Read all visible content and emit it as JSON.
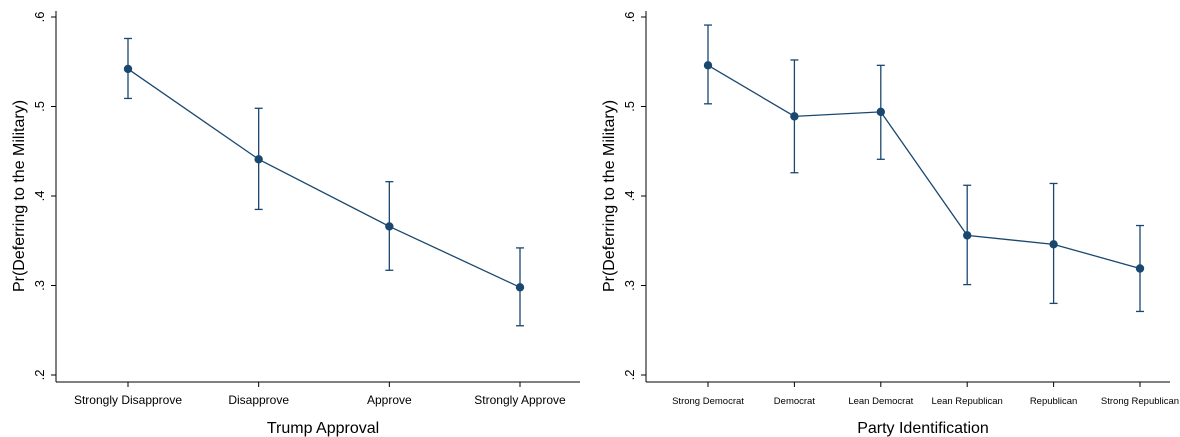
{
  "colors": {
    "series": "#1a476f",
    "axis": "#000000",
    "background": "#ffffff"
  },
  "chart_data": [
    {
      "type": "line",
      "xlabel": "Trump Approval",
      "ylabel": "Pr(Deferring to the Military)",
      "categories": [
        "Strongly Disapprove",
        "Disapprove",
        "Approve",
        "Strongly Approve"
      ],
      "ylim": [
        0.2,
        0.6
      ],
      "yticks": [
        0.2,
        0.3,
        0.4,
        0.5,
        0.6
      ],
      "ytick_labels": [
        ".2",
        ".3",
        ".4",
        ".5",
        ".6"
      ],
      "grid": false,
      "series": [
        {
          "values": [
            0.542,
            0.441,
            0.366,
            0.298
          ],
          "lower": [
            0.509,
            0.385,
            0.317,
            0.255
          ],
          "upper": [
            0.576,
            0.498,
            0.416,
            0.342
          ]
        }
      ]
    },
    {
      "type": "line",
      "xlabel": "Party Identification",
      "ylabel": "Pr(Deferring to the Military)",
      "categories": [
        "Strong Democrat",
        "Democrat",
        "Lean Democrat",
        "Lean Republican",
        "Republican",
        "Strong Republican"
      ],
      "ylim": [
        0.2,
        0.6
      ],
      "yticks": [
        0.2,
        0.3,
        0.4,
        0.5,
        0.6
      ],
      "ytick_labels": [
        ".2",
        ".3",
        ".4",
        ".5",
        ".6"
      ],
      "grid": false,
      "series": [
        {
          "values": [
            0.546,
            0.489,
            0.494,
            0.356,
            0.346,
            0.319
          ],
          "lower": [
            0.503,
            0.426,
            0.441,
            0.301,
            0.28,
            0.271
          ],
          "upper": [
            0.591,
            0.552,
            0.546,
            0.412,
            0.414,
            0.367
          ]
        }
      ]
    }
  ]
}
